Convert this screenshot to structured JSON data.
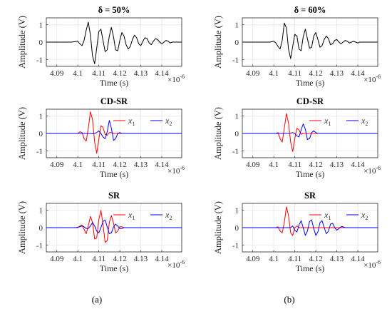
{
  "chart_data": [
    {
      "type": "line",
      "title": "δ = 50%",
      "xlabel": "Time (s)",
      "ylabel": "Amplitude (V)",
      "x_multiplier": "×10",
      "x_multiplier_exp": "-6",
      "xlim": [
        4.085,
        4.1495
      ],
      "ylim": [
        -1.4,
        1.4
      ],
      "xticks": [
        "4.09",
        "4.1",
        "4.11",
        "4.12",
        "4.13",
        "4.14"
      ],
      "yticks": [
        "1",
        "0",
        "-1"
      ],
      "grid": true,
      "series": [
        {
          "color": "#000000",
          "x": [
            4.085,
            4.097,
            4.1,
            4.101,
            4.102,
            4.103,
            4.104,
            4.105,
            4.106,
            4.107,
            4.108,
            4.109,
            4.11,
            4.111,
            4.112,
            4.113,
            4.114,
            4.115,
            4.116,
            4.117,
            4.118,
            4.119,
            4.12,
            4.121,
            4.122,
            4.123,
            4.124,
            4.125,
            4.126,
            4.127,
            4.128,
            4.129,
            4.13,
            4.131,
            4.132,
            4.133,
            4.134,
            4.135,
            4.136,
            4.137,
            4.138,
            4.139,
            4.14,
            4.141,
            4.142,
            4.143,
            4.144,
            4.145,
            4.147,
            4.1495
          ],
          "y": [
            0.0,
            0.0,
            0.05,
            -0.1,
            -0.2,
            0.1,
            0.7,
            1.15,
            0.4,
            -0.8,
            -1.25,
            -0.35,
            0.6,
            0.75,
            0.1,
            -0.55,
            -0.45,
            0.35,
            0.85,
            0.3,
            -0.45,
            -0.5,
            0.1,
            0.55,
            0.35,
            -0.15,
            -0.4,
            -0.25,
            0.15,
            0.4,
            0.25,
            -0.1,
            -0.2,
            0.05,
            0.25,
            0.2,
            -0.05,
            -0.15,
            0.05,
            0.2,
            0.15,
            0.0,
            -0.1,
            0.0,
            0.1,
            0.05,
            -0.05,
            0.0,
            0.0,
            0.0
          ]
        }
      ]
    },
    {
      "type": "line",
      "title": "δ = 60%",
      "xlabel": "Time (s)",
      "ylabel": "Amplitude (V)",
      "x_multiplier": "×10",
      "x_multiplier_exp": "-6",
      "xlim": [
        4.085,
        4.1495
      ],
      "ylim": [
        -1.4,
        1.4
      ],
      "xticks": [
        "4.09",
        "4.1",
        "4.11",
        "4.12",
        "4.13",
        "4.14"
      ],
      "yticks": [
        "1",
        "0",
        "-1"
      ],
      "grid": true,
      "series": [
        {
          "color": "#000000",
          "x": [
            4.085,
            4.098,
            4.1,
            4.101,
            4.102,
            4.103,
            4.104,
            4.105,
            4.106,
            4.107,
            4.108,
            4.109,
            4.11,
            4.111,
            4.112,
            4.113,
            4.114,
            4.115,
            4.116,
            4.117,
            4.118,
            4.119,
            4.12,
            4.121,
            4.122,
            4.123,
            4.124,
            4.125,
            4.126,
            4.127,
            4.128,
            4.129,
            4.13,
            4.131,
            4.132,
            4.133,
            4.134,
            4.135,
            4.136,
            4.137,
            4.138,
            4.139,
            4.14,
            4.141,
            4.142,
            4.143,
            4.144,
            4.145,
            4.147,
            4.1495
          ],
          "y": [
            0.0,
            0.0,
            0.05,
            -0.05,
            -0.25,
            -0.4,
            0.1,
            1.1,
            0.8,
            -0.4,
            -0.95,
            -0.25,
            0.45,
            0.35,
            -0.4,
            -0.5,
            0.3,
            0.75,
            0.2,
            -0.35,
            -0.3,
            0.35,
            0.55,
            0.15,
            -0.3,
            -0.2,
            0.15,
            0.35,
            0.2,
            -0.15,
            -0.1,
            0.1,
            0.15,
            0.0,
            -0.1,
            0.0,
            0.1,
            0.05,
            -0.05,
            0.0,
            0.05,
            0.0,
            -0.05,
            0.0,
            0.0,
            0.0,
            0.0,
            0.0,
            0.0,
            0.0
          ]
        }
      ]
    },
    {
      "type": "line",
      "title": "CD-SR",
      "xlabel": "Time (s)",
      "ylabel": "Amplitude (V)",
      "x_multiplier": "×10",
      "x_multiplier_exp": "-6",
      "xlim": [
        4.085,
        4.1495
      ],
      "ylim": [
        -1.4,
        1.4
      ],
      "xticks": [
        "4.09",
        "4.1",
        "4.11",
        "4.12",
        "4.13",
        "4.14"
      ],
      "yticks": [
        "1",
        "0",
        "-1"
      ],
      "grid": true,
      "legend_loc": "top-right",
      "series": [
        {
          "name": "x",
          "sub": "1",
          "color": "#ff0000",
          "x": [
            4.085,
            4.1,
            4.101,
            4.102,
            4.103,
            4.104,
            4.105,
            4.106,
            4.107,
            4.108,
            4.109,
            4.11,
            4.111,
            4.112,
            4.113,
            4.114,
            4.115,
            4.116,
            4.117,
            4.118,
            4.12,
            4.1495
          ],
          "y": [
            0.0,
            0.0,
            0.1,
            0.05,
            -0.3,
            -0.45,
            0.3,
            1.25,
            0.8,
            -0.5,
            -1.15,
            -0.35,
            0.45,
            0.35,
            -0.05,
            -0.1,
            0.05,
            0.05,
            0.0,
            0.0,
            0.0,
            0.0
          ]
        },
        {
          "name": "x",
          "sub": "2",
          "color": "#0000ff",
          "x": [
            4.085,
            4.106,
            4.107,
            4.108,
            4.109,
            4.11,
            4.111,
            4.112,
            4.113,
            4.114,
            4.115,
            4.116,
            4.117,
            4.118,
            4.119,
            4.12,
            4.121,
            4.122,
            4.1495
          ],
          "y": [
            0.0,
            0.0,
            -0.02,
            0.0,
            0.05,
            0.15,
            0.0,
            -0.2,
            -0.3,
            0.1,
            0.75,
            0.3,
            -0.4,
            -0.3,
            0.0,
            0.05,
            0.0,
            0.0,
            0.0
          ]
        }
      ]
    },
    {
      "type": "line",
      "title": "CD-SR",
      "xlabel": "Time (s)",
      "ylabel": "Amplitude (V)",
      "x_multiplier": "×10",
      "x_multiplier_exp": "-6",
      "xlim": [
        4.085,
        4.1495
      ],
      "ylim": [
        -1.4,
        1.4
      ],
      "xticks": [
        "4.09",
        "4.1",
        "4.11",
        "4.12",
        "4.13",
        "4.14"
      ],
      "yticks": [
        "1",
        "0",
        "-1"
      ],
      "grid": true,
      "legend_loc": "top-right",
      "series": [
        {
          "name": "x",
          "sub": "1",
          "color": "#ff0000",
          "x": [
            4.085,
            4.101,
            4.102,
            4.103,
            4.104,
            4.105,
            4.106,
            4.107,
            4.108,
            4.109,
            4.11,
            4.111,
            4.112,
            4.113,
            4.114,
            4.115,
            4.117,
            4.1495
          ],
          "y": [
            0.0,
            0.0,
            0.05,
            -0.3,
            -0.5,
            0.3,
            1.15,
            0.6,
            -0.5,
            -1.05,
            -0.3,
            0.3,
            0.2,
            -0.05,
            0.0,
            0.0,
            0.0,
            0.0
          ]
        },
        {
          "name": "x",
          "sub": "2",
          "color": "#0000ff",
          "x": [
            4.085,
            4.107,
            4.108,
            4.109,
            4.11,
            4.111,
            4.112,
            4.113,
            4.114,
            4.115,
            4.116,
            4.117,
            4.118,
            4.119,
            4.12,
            4.121,
            4.122,
            4.1495
          ],
          "y": [
            0.0,
            0.0,
            0.02,
            0.05,
            0.0,
            -0.15,
            -0.2,
            0.2,
            0.55,
            0.25,
            -0.35,
            -0.3,
            0.05,
            0.15,
            0.05,
            0.0,
            0.0,
            0.0
          ]
        }
      ]
    },
    {
      "type": "line",
      "title": "SR",
      "xlabel": "Time (s)",
      "ylabel": "Amplitude (V)",
      "x_multiplier": "×10",
      "x_multiplier_exp": "-6",
      "xlim": [
        4.085,
        4.1495
      ],
      "ylim": [
        -1.4,
        1.4
      ],
      "xticks": [
        "4.09",
        "4.1",
        "4.11",
        "4.12",
        "4.13",
        "4.14"
      ],
      "yticks": [
        "1",
        "0",
        "-1"
      ],
      "grid": true,
      "legend_loc": "top-right",
      "series": [
        {
          "name": "x",
          "sub": "1",
          "color": "#ff0000",
          "x": [
            4.085,
            4.1,
            4.101,
            4.102,
            4.103,
            4.104,
            4.105,
            4.106,
            4.107,
            4.108,
            4.109,
            4.11,
            4.111,
            4.112,
            4.113,
            4.114,
            4.115,
            4.116,
            4.117,
            4.118,
            4.119,
            4.12,
            4.121,
            4.122,
            4.124,
            4.1495
          ],
          "y": [
            0.0,
            0.0,
            0.1,
            0.15,
            -0.1,
            -0.35,
            0.1,
            0.65,
            0.3,
            -0.65,
            -0.6,
            0.45,
            1.0,
            0.2,
            -0.85,
            -0.75,
            0.3,
            0.7,
            0.25,
            -0.3,
            -0.2,
            0.05,
            0.05,
            0.0,
            0.0,
            0.0
          ]
        },
        {
          "name": "x",
          "sub": "2",
          "color": "#0000ff",
          "x": [
            4.085,
            4.099,
            4.101,
            4.102,
            4.103,
            4.104,
            4.105,
            4.106,
            4.107,
            4.108,
            4.109,
            4.11,
            4.111,
            4.112,
            4.113,
            4.114,
            4.115,
            4.116,
            4.117,
            4.118,
            4.119,
            4.12,
            4.121,
            4.122,
            4.123,
            4.125,
            4.1495
          ],
          "y": [
            0.0,
            0.0,
            0.05,
            0.1,
            0.05,
            -0.05,
            -0.05,
            0.1,
            0.3,
            0.1,
            -0.2,
            -0.3,
            0.0,
            0.35,
            0.45,
            0.05,
            -0.35,
            -0.3,
            0.05,
            0.2,
            0.1,
            -0.05,
            -0.05,
            0.0,
            0.0,
            0.0,
            0.0
          ]
        }
      ]
    },
    {
      "type": "line",
      "title": "SR",
      "xlabel": "Time (s)",
      "ylabel": "Amplitude (V)",
      "x_multiplier": "×10",
      "x_multiplier_exp": "-6",
      "xlim": [
        4.085,
        4.1495
      ],
      "ylim": [
        -1.4,
        1.4
      ],
      "xticks": [
        "4.09",
        "4.1",
        "4.11",
        "4.12",
        "4.13",
        "4.14"
      ],
      "yticks": [
        "1",
        "0",
        "-1"
      ],
      "grid": true,
      "legend_loc": "top-right",
      "series": [
        {
          "name": "x",
          "sub": "1",
          "color": "#ff0000",
          "x": [
            4.085,
            4.101,
            4.102,
            4.103,
            4.104,
            4.105,
            4.106,
            4.107,
            4.108,
            4.109,
            4.11,
            4.111,
            4.112,
            4.113,
            4.115,
            4.1495
          ],
          "y": [
            0.0,
            0.0,
            0.05,
            -0.2,
            -0.3,
            0.3,
            1.2,
            0.7,
            -0.3,
            -0.45,
            0.0,
            0.1,
            0.0,
            0.0,
            0.0,
            0.0
          ]
        },
        {
          "name": "x",
          "sub": "2",
          "color": "#0000ff",
          "x": [
            4.085,
            4.108,
            4.109,
            4.11,
            4.111,
            4.112,
            4.113,
            4.114,
            4.115,
            4.116,
            4.117,
            4.118,
            4.119,
            4.12,
            4.121,
            4.122,
            4.123,
            4.124,
            4.125,
            4.126,
            4.127,
            4.128,
            4.129,
            4.13,
            4.131,
            4.132,
            4.133,
            4.134,
            4.135,
            4.1495
          ],
          "y": [
            0.0,
            0.0,
            0.1,
            -0.15,
            -0.25,
            0.15,
            0.4,
            0.0,
            -0.45,
            -0.2,
            0.35,
            0.45,
            -0.05,
            -0.45,
            -0.25,
            0.3,
            0.4,
            0.0,
            -0.35,
            -0.2,
            0.2,
            0.25,
            0.0,
            -0.15,
            -0.05,
            0.05,
            0.05,
            0.0,
            0.0,
            0.0
          ]
        }
      ]
    }
  ],
  "captions": [
    "(a)",
    "(b)"
  ]
}
